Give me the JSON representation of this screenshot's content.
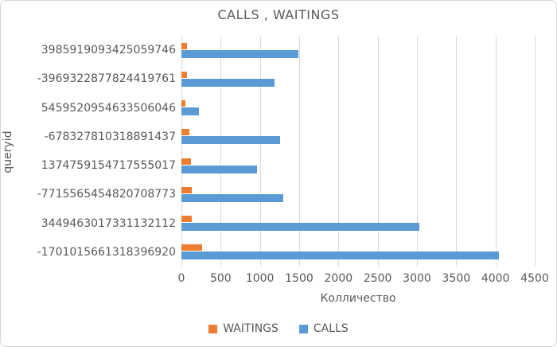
{
  "chart_data": {
    "type": "bar",
    "orientation": "horizontal",
    "title": "CALLS , WAITINGS",
    "xlabel": "Колличество",
    "ylabel": "queryid",
    "categories": [
      "3985919093425059746",
      "-3969322877824419761",
      "5459520954633506046",
      "-678327810318891437",
      "1374759154717555017",
      "-7715565454820708773",
      "3449463017331132112",
      "-1701015661318396920"
    ],
    "series": [
      {
        "name": "WAITINGS",
        "color": "#ED7D31",
        "values": [
          70,
          70,
          55,
          100,
          120,
          130,
          130,
          265
        ]
      },
      {
        "name": "CALLS",
        "color": "#5B9BD5",
        "values": [
          1490,
          1190,
          220,
          1255,
          965,
          1300,
          3030,
          4040
        ]
      }
    ],
    "xlim": [
      0,
      4500
    ],
    "x_tick_step": 500,
    "x_ticks": [
      "0",
      "500",
      "1000",
      "1500",
      "2000",
      "2500",
      "3000",
      "3500",
      "4000",
      "4500"
    ],
    "grid": true,
    "legend_position": "bottom",
    "colors": {
      "gridline": "#d9d9d9",
      "text": "#595959",
      "background": "#ffffff"
    }
  }
}
